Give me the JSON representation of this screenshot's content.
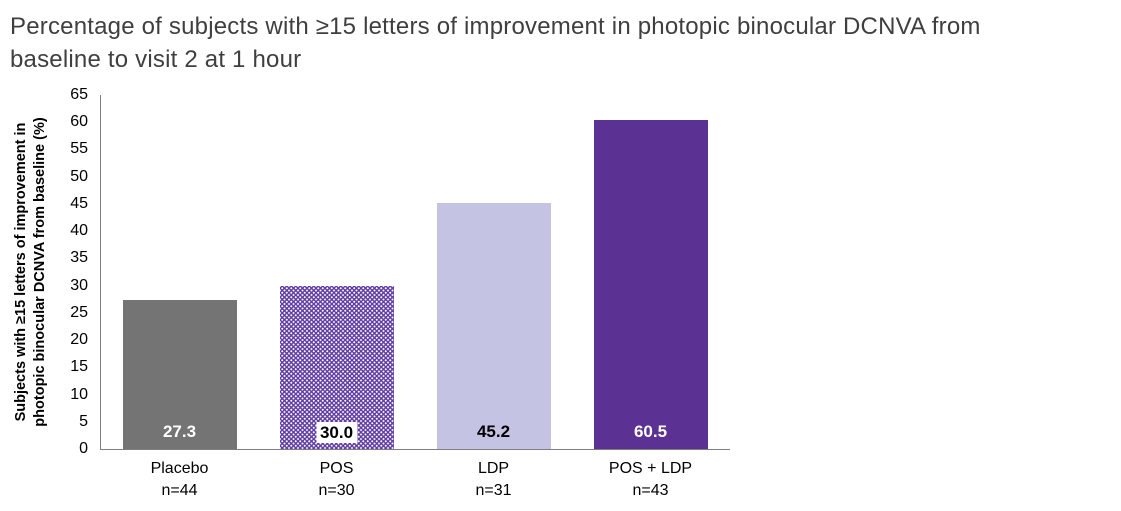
{
  "title": {
    "line1": "Percentage of subjects with ≥15 letters of improvement in photopic binocular DCNVA from",
    "line2": "baseline to visit 2 at 1 hour"
  },
  "chart_data": {
    "type": "bar",
    "title": "Percentage of subjects with ≥15 letters of improvement in photopic binocular DCNVA from baseline to visit 2 at 1 hour",
    "ylabel": "Subjects with ≥15 letters of improvement in photopic binocular DCNVA from baseline (%)",
    "ylabel_lines": [
      "Subjects with ≥15 letters of improvement in",
      "photopic binocular DCNVA from baseline (%)"
    ],
    "xlabel": "",
    "categories": [
      "Placebo",
      "POS",
      "LDP",
      "POS + LDP"
    ],
    "sample_sizes": [
      "n=44",
      "n=30",
      "n=31",
      "n=43"
    ],
    "values": [
      27.3,
      30.0,
      45.2,
      60.5
    ],
    "value_labels": [
      "27.3",
      "30.0",
      "45.2",
      "60.5"
    ],
    "ylim": [
      0,
      65
    ],
    "ytick_step": 5,
    "grid": false,
    "legend": "none",
    "bar_styles": [
      "solid-gray",
      "dotted-purple",
      "solid-lavender",
      "solid-purple"
    ],
    "value_label_styles": [
      "white",
      "boxed",
      "black",
      "white"
    ],
    "colors": {
      "gray_bar": "#747474",
      "dotted_purple_base": "#5f3aa0",
      "dot": "#ffffff",
      "lavender_bar": "#c5c3e3",
      "purple_bar": "#5b3194",
      "axis": "#7f7f7f",
      "title_text": "#3f3f3f",
      "label_text": "#000000"
    }
  }
}
